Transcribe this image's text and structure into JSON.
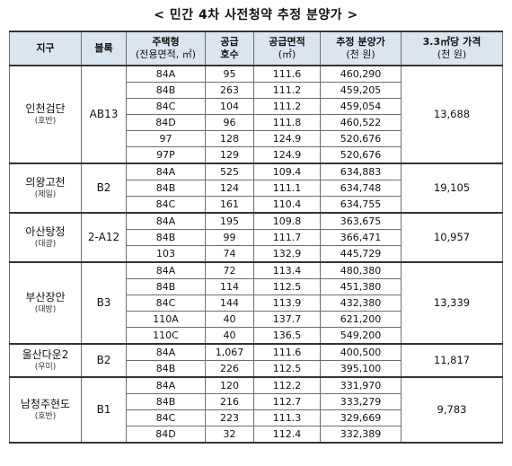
{
  "title": "< 민간 4차 사전청약 추정 분양가 >",
  "headers": {
    "district": "지구",
    "block": "블록",
    "type_line1": "주택형",
    "type_line2": "(전용면적, ㎡)",
    "supply_line1": "공급",
    "supply_line2": "호수",
    "area_line1": "공급면적",
    "area_line2": "(㎡)",
    "price_line1": "추정 분양가",
    "price_line2": "(천 원)",
    "per33_line1": "3.3㎡당 가격",
    "per33_line2": "(천 원)"
  },
  "groups": [
    {
      "district": "인천검단",
      "builder": "(호반)",
      "block": "AB13",
      "per33": "13,688",
      "rows": [
        {
          "type": "84A",
          "units": "95",
          "area": "111.6",
          "price": "460,290"
        },
        {
          "type": "84B",
          "units": "263",
          "area": "111.2",
          "price": "459,205"
        },
        {
          "type": "84C",
          "units": "104",
          "area": "111.2",
          "price": "459,054"
        },
        {
          "type": "84D",
          "units": "96",
          "area": "111.8",
          "price": "460,522"
        },
        {
          "type": "97",
          "units": "128",
          "area": "124.9",
          "price": "520,676"
        },
        {
          "type": "97P",
          "units": "129",
          "area": "124.9",
          "price": "520,676"
        }
      ]
    },
    {
      "district": "의왕고천",
      "builder": "(제일)",
      "block": "B2",
      "per33": "19,105",
      "rows": [
        {
          "type": "84A",
          "units": "525",
          "area": "109.4",
          "price": "634,883"
        },
        {
          "type": "84B",
          "units": "124",
          "area": "111.1",
          "price": "634,748"
        },
        {
          "type": "84C",
          "units": "161",
          "area": "110.4",
          "price": "634,755"
        }
      ]
    },
    {
      "district": "아산탕정",
      "builder": "(대광)",
      "block": "2-A12",
      "per33": "10,957",
      "rows": [
        {
          "type": "84A",
          "units": "195",
          "area": "109.8",
          "price": "363,675"
        },
        {
          "type": "84B",
          "units": "99",
          "area": "111.7",
          "price": "366,471"
        },
        {
          "type": "103",
          "units": "74",
          "area": "132.9",
          "price": "445,729"
        }
      ]
    },
    {
      "district": "부산장안",
      "builder": "(대방)",
      "block": "B3",
      "per33": "13,339",
      "rows": [
        {
          "type": "84A",
          "units": "72",
          "area": "113.4",
          "price": "480,380"
        },
        {
          "type": "84B",
          "units": "114",
          "area": "112.5",
          "price": "451,380"
        },
        {
          "type": "84C",
          "units": "144",
          "area": "113.9",
          "price": "432,380"
        },
        {
          "type": "110A",
          "units": "40",
          "area": "137.7",
          "price": "621,200"
        },
        {
          "type": "110C",
          "units": "40",
          "area": "136.5",
          "price": "549,200"
        }
      ]
    },
    {
      "district": "울산다운2",
      "builder": "(우미)",
      "block": "B2",
      "per33": "11,817",
      "rows": [
        {
          "type": "84A",
          "units": "1,067",
          "area": "111.6",
          "price": "400,500"
        },
        {
          "type": "84B",
          "units": "226",
          "area": "112.5",
          "price": "395,100"
        }
      ]
    },
    {
      "district": "남청주현도",
      "builder": "(호반)",
      "block": "B1",
      "per33": "9,783",
      "rows": [
        {
          "type": "84A",
          "units": "120",
          "area": "112.2",
          "price": "331,970"
        },
        {
          "type": "84B",
          "units": "216",
          "area": "112.7",
          "price": "333,279"
        },
        {
          "type": "84C",
          "units": "223",
          "area": "111.3",
          "price": "329,669"
        },
        {
          "type": "84D",
          "units": "32",
          "area": "112.4",
          "price": "332,389"
        }
      ]
    }
  ]
}
